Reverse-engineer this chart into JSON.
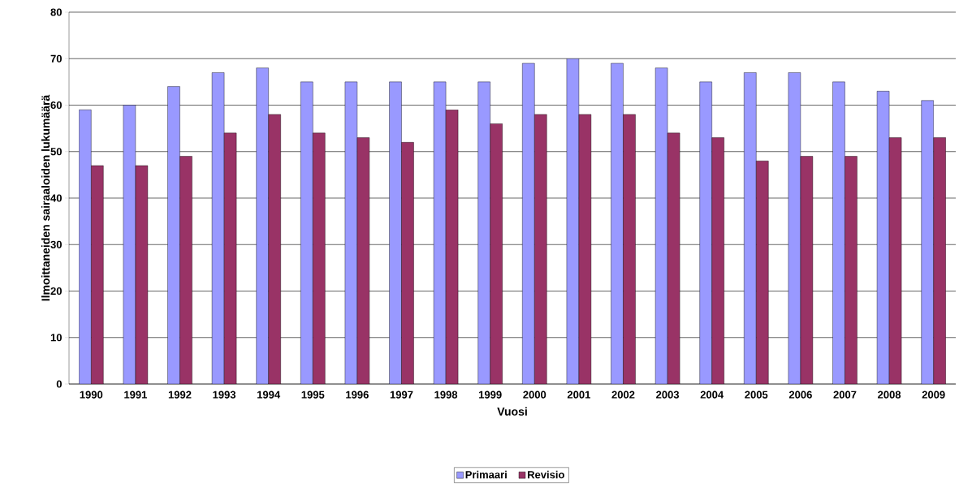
{
  "chart_data": {
    "type": "bar",
    "xlabel": "Vuosi",
    "ylabel": "Ilmoittaneiden sairaaloiden lukumäärä",
    "categories": [
      "1990",
      "1991",
      "1992",
      "1993",
      "1994",
      "1995",
      "1996",
      "1997",
      "1998",
      "1999",
      "2000",
      "2001",
      "2002",
      "2003",
      "2004",
      "2005",
      "2006",
      "2007",
      "2008",
      "2009"
    ],
    "series": [
      {
        "name": "Primaari",
        "color": "#9999ff",
        "values": [
          59,
          60,
          64,
          67,
          68,
          65,
          65,
          65,
          65,
          65,
          69,
          70,
          69,
          68,
          65,
          67,
          67,
          65,
          63,
          61
        ]
      },
      {
        "name": "Revisio",
        "color": "#993366",
        "values": [
          47,
          47,
          49,
          54,
          58,
          54,
          53,
          52,
          59,
          56,
          58,
          58,
          58,
          54,
          53,
          48,
          49,
          49,
          53,
          53
        ]
      }
    ],
    "ylim": [
      0,
      80
    ],
    "yticks": [
      0,
      10,
      20,
      30,
      40,
      50,
      60,
      70,
      80
    ],
    "grid": "y",
    "legend": "bottom"
  }
}
